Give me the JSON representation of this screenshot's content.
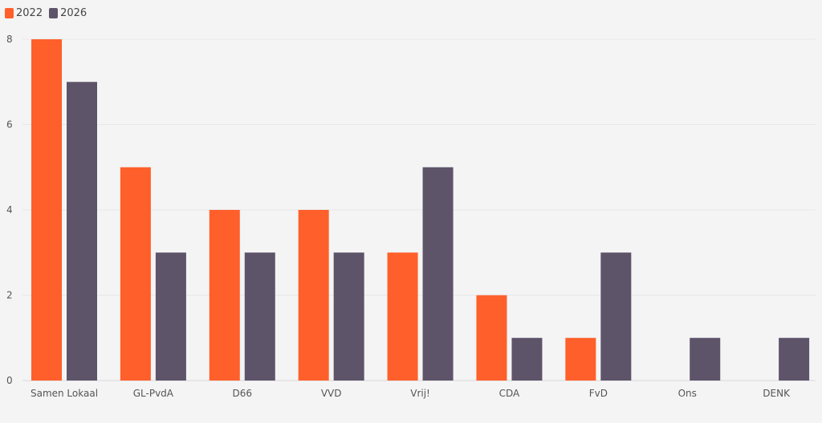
{
  "legend": {
    "items": [
      {
        "label": "2022",
        "color": "#ff5f2a"
      },
      {
        "label": "2026",
        "color": "#5e546a"
      }
    ]
  },
  "chart_data": {
    "type": "bar",
    "categories": [
      "Samen Lokaal",
      "GL-PvdA",
      "D66",
      "VVD",
      "Vrij!",
      "CDA",
      "FvD",
      "Ons",
      "DENK"
    ],
    "series": [
      {
        "name": "2022",
        "color": "#ff5f2a",
        "values": [
          8,
          5,
          4,
          4,
          3,
          2,
          1,
          0,
          0
        ]
      },
      {
        "name": "2026",
        "color": "#5e546a",
        "values": [
          7,
          3,
          3,
          3,
          5,
          1,
          3,
          1,
          1
        ]
      }
    ],
    "yticks": [
      0,
      2,
      4,
      6,
      8
    ],
    "ylim": [
      0,
      8
    ],
    "legend_position": "top-left",
    "grid": true
  }
}
